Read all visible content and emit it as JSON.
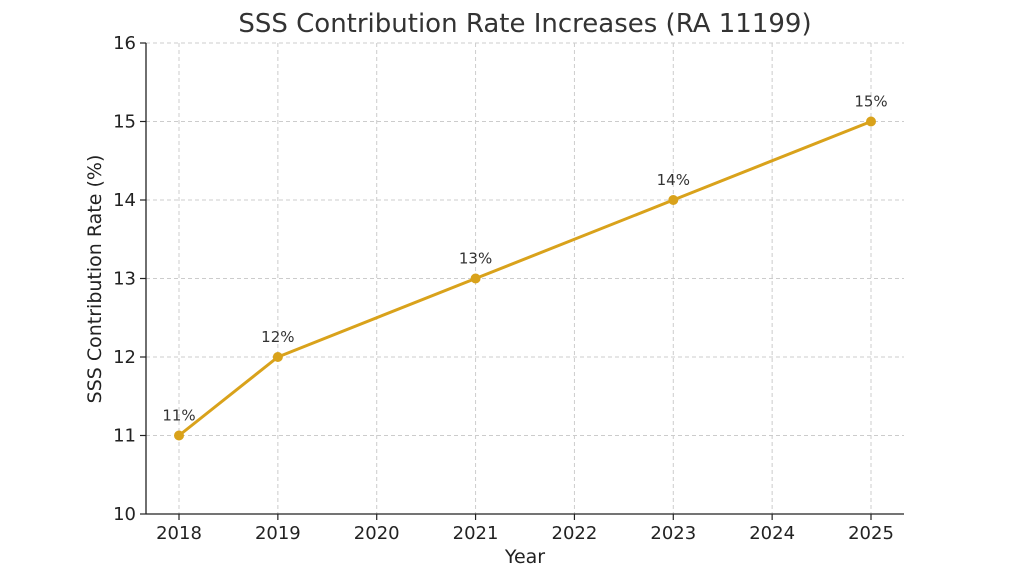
{
  "chart_data": {
    "type": "line",
    "title": "SSS Contribution Rate Increases (RA 11199)",
    "xlabel": "Year",
    "ylabel": "SSS Contribution Rate (%)",
    "x": [
      "2018",
      "2019",
      "2020",
      "2021",
      "2022",
      "2023",
      "2024",
      "2025"
    ],
    "series": [
      {
        "name": "SSS Contribution Rate",
        "color": "#d9a21b",
        "points": [
          {
            "x": "2018",
            "y": 11,
            "label": "11%"
          },
          {
            "x": "2019",
            "y": 12,
            "label": "12%"
          },
          {
            "x": "2021",
            "y": 13,
            "label": "13%"
          },
          {
            "x": "2023",
            "y": 14,
            "label": "14%"
          },
          {
            "x": "2025",
            "y": 15,
            "label": "15%"
          }
        ]
      }
    ],
    "ylim": [
      10,
      16
    ],
    "yticks": [
      "10",
      "11",
      "12",
      "13",
      "14",
      "15",
      "16"
    ],
    "grid": true
  }
}
